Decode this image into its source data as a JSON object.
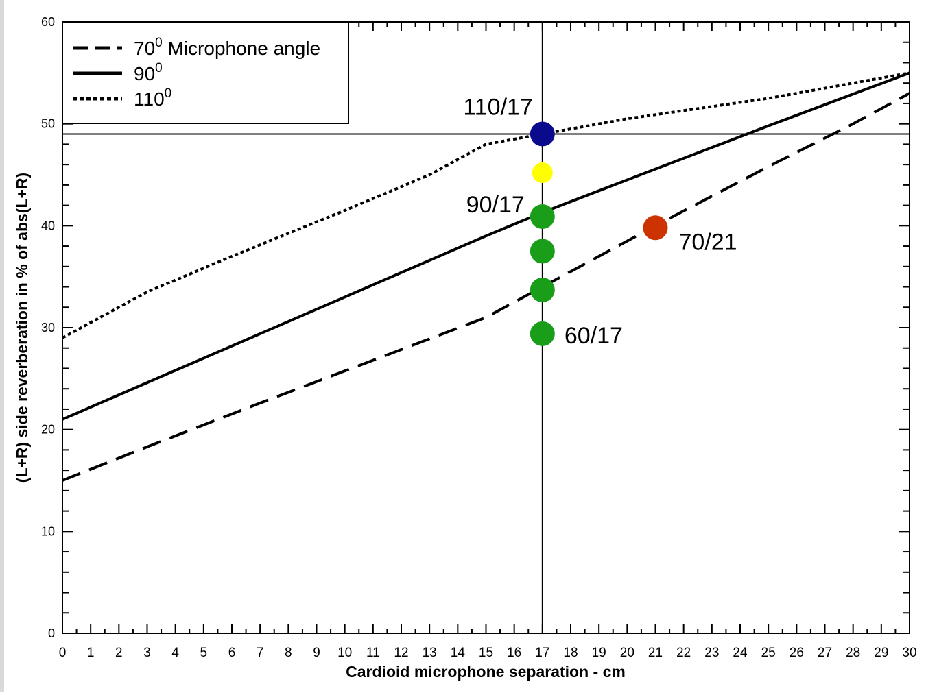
{
  "chart_data": {
    "type": "line",
    "title": "",
    "xlabel": "Cardioid microphone separation - cm",
    "ylabel": "(L+R) side reverberation in % of abs(L+R)",
    "xlim": [
      0,
      30
    ],
    "ylim": [
      0,
      60
    ],
    "x_ticks": [
      0,
      1,
      2,
      3,
      4,
      5,
      6,
      7,
      8,
      9,
      10,
      11,
      12,
      13,
      14,
      15,
      16,
      17,
      18,
      19,
      20,
      21,
      22,
      23,
      24,
      25,
      26,
      27,
      28,
      29,
      30
    ],
    "y_ticks": [
      0,
      10,
      20,
      30,
      40,
      50,
      60
    ],
    "grid": false,
    "legend_position": "top-left",
    "legend": [
      {
        "label": "70",
        "sup": "0",
        "suffix": " Microphone angle",
        "style": "dashed"
      },
      {
        "label": "90",
        "sup": "0",
        "suffix": "",
        "style": "solid"
      },
      {
        "label": "110",
        "sup": "0",
        "suffix": "",
        "style": "dotted"
      }
    ],
    "series": [
      {
        "style": "dashed",
        "x": [
          0,
          3,
          7,
          11,
          15,
          17,
          21,
          25,
          28,
          30
        ],
        "y": [
          15,
          18.3,
          22.6,
          26.8,
          31,
          34,
          40,
          45.8,
          50,
          53
        ]
      },
      {
        "style": "solid",
        "x": [
          0,
          5,
          10,
          15,
          17,
          20,
          25,
          30
        ],
        "y": [
          21,
          27,
          33,
          39,
          41.3,
          44.5,
          49.8,
          55
        ]
      },
      {
        "style": "dotted",
        "x": [
          0,
          3,
          6,
          10,
          13,
          15,
          17,
          20,
          25,
          30
        ],
        "y": [
          29,
          33.5,
          37,
          41.5,
          45,
          48,
          49,
          50.5,
          52.5,
          55
        ]
      }
    ],
    "reference_lines": {
      "vertical_x": 17,
      "horizontal_y": 49
    },
    "points": [
      {
        "x": 17,
        "y": 49,
        "color": "#0a0a8c",
        "label": "110/17",
        "label_side": "above-left"
      },
      {
        "x": 17,
        "y": 45.2,
        "color": "#ffff00",
        "label": "",
        "label_side": ""
      },
      {
        "x": 17,
        "y": 40.9,
        "color": "#1a9e1a",
        "label": "90/17",
        "label_side": "left"
      },
      {
        "x": 17,
        "y": 37.5,
        "color": "#1a9e1a",
        "label": "",
        "label_side": ""
      },
      {
        "x": 17,
        "y": 33.7,
        "color": "#1a9e1a",
        "label": "",
        "label_side": ""
      },
      {
        "x": 17,
        "y": 29.4,
        "color": "#1a9e1a",
        "label": "60/17",
        "label_side": "right"
      },
      {
        "x": 21,
        "y": 39.8,
        "color": "#cc3300",
        "label": "70/21",
        "label_side": "below-right"
      }
    ]
  }
}
